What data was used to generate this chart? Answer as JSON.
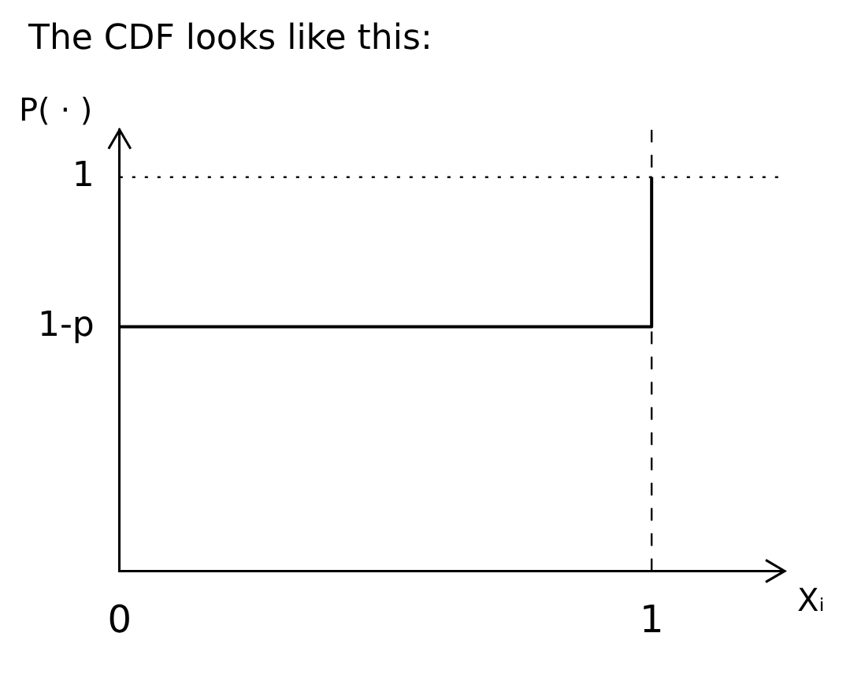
{
  "chart_data": {
    "type": "step",
    "title": "The CDF looks like this:",
    "xlabel": "Xᵢ",
    "ylabel": "P( · )",
    "x": [
      0,
      1
    ],
    "values": [
      0.62,
      1
    ],
    "color": "#000000",
    "xlim": [
      0,
      1.25
    ],
    "xticks": [
      0,
      1
    ],
    "ylim": [
      0,
      1.12
    ],
    "yticks": [
      {
        "value": 0.62,
        "label": "1-p"
      },
      1
    ],
    "ref_lines": [
      {
        "axis": "x",
        "value": 1,
        "line_style": "dashed",
        "color": "#000000"
      },
      {
        "axis": "y",
        "value": 1,
        "line_style": "dotted",
        "color": "#000000"
      }
    ],
    "grid": false,
    "legend": false,
    "marker": "none",
    "line_style": "solid"
  }
}
